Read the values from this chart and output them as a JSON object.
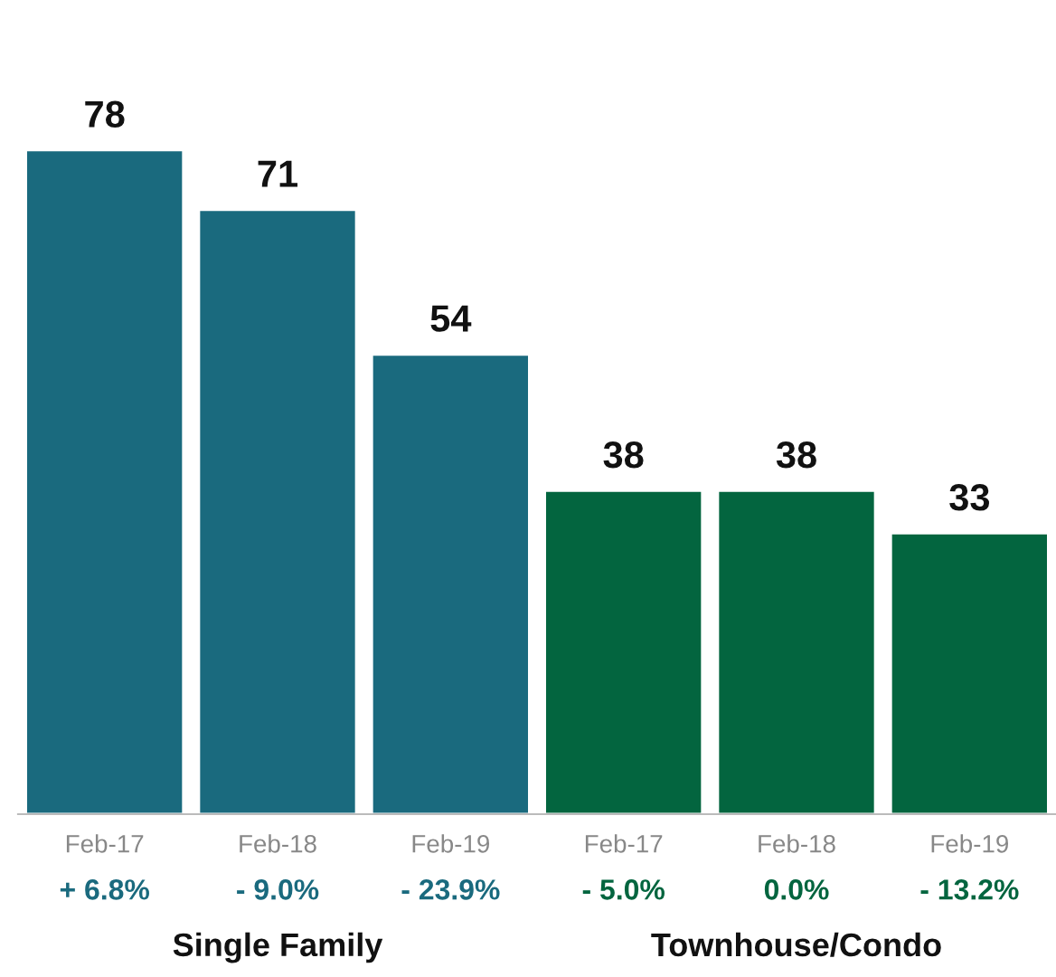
{
  "chart_data": {
    "type": "bar",
    "categories": [
      "Feb-17",
      "Feb-18",
      "Feb-19",
      "Feb-17",
      "Feb-18",
      "Feb-19"
    ],
    "values": [
      78,
      71,
      54,
      38,
      38,
      33
    ],
    "colors": [
      "#1a6a7e",
      "#1a6a7e",
      "#1a6a7e",
      "#03653f",
      "#03653f",
      "#03653f"
    ],
    "data_labels": true,
    "annotations": [
      "+ 6.8%",
      "- 9.0%",
      "- 23.9%",
      "- 5.0%",
      "0.0%",
      "- 13.2%",
      "Single Family",
      "Townhouse/Condo"
    ],
    "grid": false,
    "legend": false
  }
}
